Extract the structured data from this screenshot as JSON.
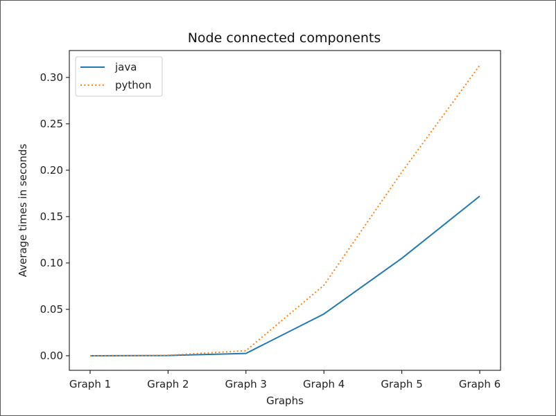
{
  "chart_data": {
    "type": "line",
    "title": "Node connected components",
    "xlabel": "Graphs",
    "ylabel": "Average times in seconds",
    "categories": [
      "Graph 1",
      "Graph 2",
      "Graph 3",
      "Graph 4",
      "Graph 5",
      "Graph 6"
    ],
    "series": [
      {
        "name": "java",
        "values": [
          0.0,
          0.0003,
          0.0025,
          0.045,
          0.105,
          0.172
        ],
        "color": "#1f77b4",
        "style": "solid"
      },
      {
        "name": "python",
        "values": [
          0.0,
          0.0005,
          0.0055,
          0.076,
          0.198,
          0.313
        ],
        "color": "#ff7f0e",
        "style": "dotted"
      }
    ],
    "yticks": [
      0.0,
      0.05,
      0.1,
      0.15,
      0.2,
      0.25,
      0.3
    ],
    "ytick_labels": [
      "0.00",
      "0.05",
      "0.10",
      "0.15",
      "0.20",
      "0.25",
      "0.30"
    ],
    "ylim": [
      -0.0157,
      0.329
    ],
    "grid": false,
    "legend_position": "top-left"
  }
}
